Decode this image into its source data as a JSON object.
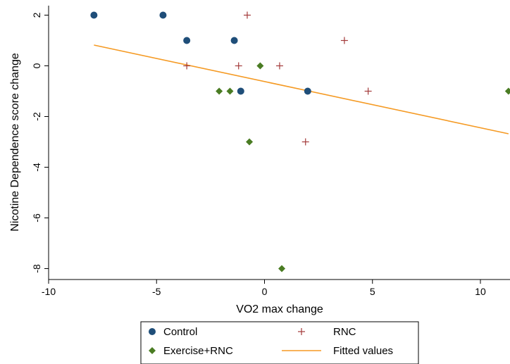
{
  "chart_data": {
    "type": "scatter",
    "xlabel": "VO2 max change",
    "ylabel": "Nicotine Dependence score change",
    "xlim": [
      -11.2,
      11.3
    ],
    "ylim": [
      -8.6,
      2.4
    ],
    "xticks": [
      -10,
      -5,
      0,
      5,
      10
    ],
    "xtick_labels": [
      "-10",
      "-5",
      "0",
      "5",
      "10"
    ],
    "yticks": [
      2,
      0,
      -2,
      -4,
      -6,
      -8
    ],
    "ytick_labels": [
      "2",
      "0",
      "-2",
      "-4",
      "-6",
      "-8"
    ],
    "grid": false,
    "legend_position": "bottom",
    "series": [
      {
        "name": "Control",
        "marker": "circle",
        "color": "#1f4e79",
        "points": [
          {
            "x": -7.9,
            "y": 2
          },
          {
            "x": -4.7,
            "y": 2
          },
          {
            "x": -3.6,
            "y": 1
          },
          {
            "x": -1.4,
            "y": 1
          },
          {
            "x": -1.1,
            "y": -1
          },
          {
            "x": 2.0,
            "y": -1
          }
        ]
      },
      {
        "name": "RNC",
        "marker": "plus",
        "color": "#a33a3a",
        "points": [
          {
            "x": -0.8,
            "y": 2
          },
          {
            "x": 3.7,
            "y": 1
          },
          {
            "x": -3.6,
            "y": 0
          },
          {
            "x": -1.2,
            "y": 0
          },
          {
            "x": 0.7,
            "y": 0
          },
          {
            "x": 4.8,
            "y": -1
          },
          {
            "x": 1.9,
            "y": -3
          }
        ]
      },
      {
        "name": "Exercise+RNC",
        "marker": "diamond",
        "color": "#4a7c23",
        "points": [
          {
            "x": -0.2,
            "y": 0
          },
          {
            "x": -2.1,
            "y": -1
          },
          {
            "x": -1.6,
            "y": -1
          },
          {
            "x": 11.3,
            "y": -1
          },
          {
            "x": -0.7,
            "y": -3
          },
          {
            "x": 0.8,
            "y": -8
          }
        ]
      }
    ],
    "fit_line": {
      "name": "Fitted values",
      "color": "#f59a23",
      "x": [
        -7.9,
        11.3
      ],
      "y": [
        0.82,
        -2.68
      ]
    },
    "legend": [
      {
        "label": "Control",
        "marker": "circle",
        "color": "#1f4e79"
      },
      {
        "label": "RNC",
        "marker": "plus",
        "color": "#a33a3a"
      },
      {
        "label": "Exercise+RNC",
        "marker": "diamond",
        "color": "#4a7c23"
      },
      {
        "label": "Fitted values",
        "marker": "line",
        "color": "#f59a23"
      }
    ]
  }
}
